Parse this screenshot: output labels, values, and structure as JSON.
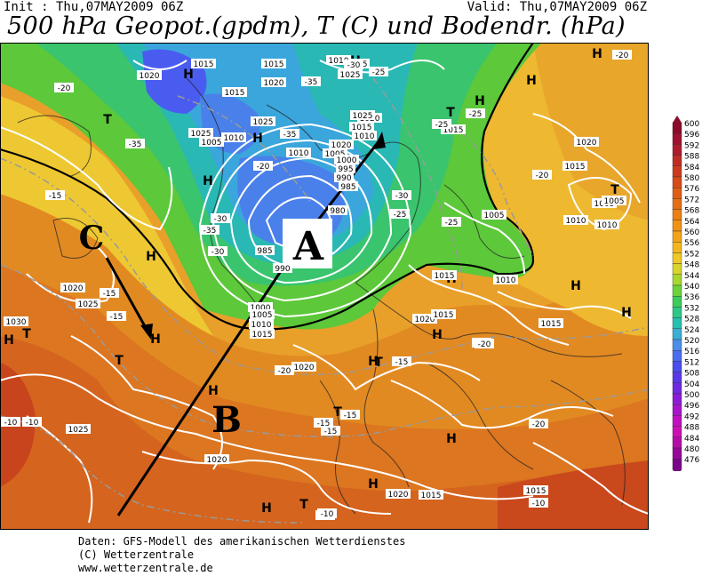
{
  "header": {
    "init": "Init : Thu,07MAY2009 06Z",
    "valid": "Valid: Thu,07MAY2009 06Z",
    "title": "500 hPa Geopot.(gpdm), T (C) und Bodendr. (hPa)"
  },
  "footer": {
    "line1": "Daten: GFS-Modell des amerikanischen Wetterdienstes",
    "line2": "(C) Wetterzentrale",
    "line3": "www.wetterzentrale.de"
  },
  "annotations": {
    "a": "A",
    "b": "B",
    "c": "C"
  },
  "pressure_systems": [
    {
      "label": "H"
    },
    {
      "label": "H"
    },
    {
      "label": "H"
    },
    {
      "label": "H"
    },
    {
      "label": "H"
    },
    {
      "label": "H"
    },
    {
      "label": "H"
    },
    {
      "label": "H"
    },
    {
      "label": "H"
    },
    {
      "label": "H"
    },
    {
      "label": "H"
    },
    {
      "label": "H"
    },
    {
      "label": "H"
    },
    {
      "label": "H"
    },
    {
      "label": "H"
    },
    {
      "label": "H"
    },
    {
      "label": "H"
    },
    {
      "label": "H"
    },
    {
      "label": "H"
    },
    {
      "label": "T"
    },
    {
      "label": "T"
    },
    {
      "label": "T"
    },
    {
      "label": "T"
    },
    {
      "label": "T"
    },
    {
      "label": "T"
    },
    {
      "label": "T"
    },
    {
      "label": "T"
    }
  ],
  "isobar_labels": [
    "1020",
    "1015",
    "1015",
    "1015",
    "1015",
    "1025",
    "1020",
    "1025",
    "1010",
    "1025",
    "1005",
    "1010",
    "1020",
    "1015",
    "1010",
    "1020",
    "1005",
    "1000",
    "995",
    "990",
    "985",
    "980",
    "1010",
    "985",
    "990",
    "1000",
    "1005",
    "1010",
    "1015",
    "1005",
    "1015",
    "1010",
    "1005",
    "1015",
    "1020",
    "1025",
    "1015",
    "1030",
    "1025",
    "1020",
    "1020",
    "1020",
    "1015",
    "1015",
    "1010",
    "1005",
    "1010",
    "1015",
    "1020",
    "1025",
    "1020",
    "1015"
  ],
  "temperature_labels": [
    "-20",
    "-25",
    "-30",
    "-35",
    "-35",
    "-35",
    "-30",
    "-20",
    "-25",
    "-15",
    "-30",
    "-25",
    "-25",
    "-35",
    "-30",
    "-20",
    "-15",
    "-10",
    "-10",
    "-20",
    "-15",
    "-15",
    "-15",
    "-15",
    "-10",
    "-15",
    "-20",
    "-25",
    "-20",
    "-15",
    "-10",
    "-20",
    "-10"
  ],
  "color_scale": {
    "levels": [
      "600",
      "596",
      "592",
      "588",
      "584",
      "580",
      "576",
      "572",
      "568",
      "564",
      "560",
      "556",
      "552",
      "548",
      "544",
      "540",
      "536",
      "532",
      "528",
      "524",
      "520",
      "516",
      "512",
      "508",
      "504",
      "500",
      "496",
      "492",
      "488",
      "484",
      "480",
      "476"
    ],
    "colors": [
      "#8c0a2a",
      "#a01030",
      "#b01a2a",
      "#c02a24",
      "#cc3a1e",
      "#d84a18",
      "#e05c14",
      "#e66e12",
      "#ec8012",
      "#f09214",
      "#f2a418",
      "#f4b61c",
      "#eec824",
      "#d8d42a",
      "#a8d82e",
      "#6cd23a",
      "#3ccc5a",
      "#2cc886",
      "#26c0b0",
      "#3aaed4",
      "#4a8ee8",
      "#4a6cf0",
      "#4a4cee",
      "#5a38e8",
      "#7028e0",
      "#8a1cd8",
      "#a814cc",
      "#c010c0",
      "#cc10b4",
      "#b40ca8",
      "#96089a",
      "#7a0488"
    ]
  }
}
